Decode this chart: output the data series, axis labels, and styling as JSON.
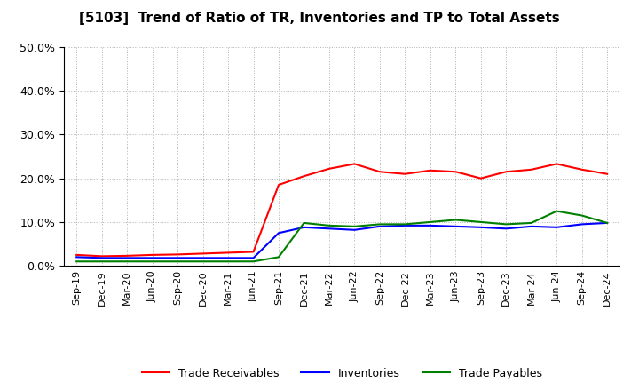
{
  "title": "[5103]  Trend of Ratio of TR, Inventories and TP to Total Assets",
  "x_labels": [
    "Sep-19",
    "Dec-19",
    "Mar-20",
    "Jun-20",
    "Sep-20",
    "Dec-20",
    "Mar-21",
    "Jun-21",
    "Sep-21",
    "Dec-21",
    "Mar-22",
    "Jun-22",
    "Sep-22",
    "Dec-22",
    "Mar-23",
    "Jun-23",
    "Sep-23",
    "Dec-23",
    "Mar-24",
    "Jun-24",
    "Sep-24",
    "Dec-24"
  ],
  "trade_receivables": [
    0.025,
    0.022,
    0.023,
    0.025,
    0.026,
    0.028,
    0.03,
    0.032,
    0.185,
    0.205,
    0.222,
    0.233,
    0.215,
    0.21,
    0.218,
    0.215,
    0.2,
    0.215,
    0.22,
    0.233,
    0.22,
    0.21
  ],
  "inventories": [
    0.02,
    0.018,
    0.018,
    0.018,
    0.018,
    0.018,
    0.018,
    0.018,
    0.075,
    0.088,
    0.085,
    0.082,
    0.09,
    0.092,
    0.092,
    0.09,
    0.088,
    0.085,
    0.09,
    0.088,
    0.095,
    0.098
  ],
  "trade_payables": [
    0.01,
    0.01,
    0.01,
    0.01,
    0.01,
    0.01,
    0.01,
    0.01,
    0.02,
    0.098,
    0.092,
    0.09,
    0.095,
    0.095,
    0.1,
    0.105,
    0.1,
    0.095,
    0.098,
    0.125,
    0.115,
    0.098
  ],
  "line_color_tr": "#ff0000",
  "line_color_inv": "#0000ff",
  "line_color_tp": "#008000",
  "ylim": [
    0.0,
    0.5
  ],
  "yticks": [
    0.0,
    0.1,
    0.2,
    0.3,
    0.4,
    0.5
  ],
  "legend_labels": [
    "Trade Receivables",
    "Inventories",
    "Trade Payables"
  ],
  "background_color": "#ffffff",
  "grid_color": "#aaaaaa"
}
